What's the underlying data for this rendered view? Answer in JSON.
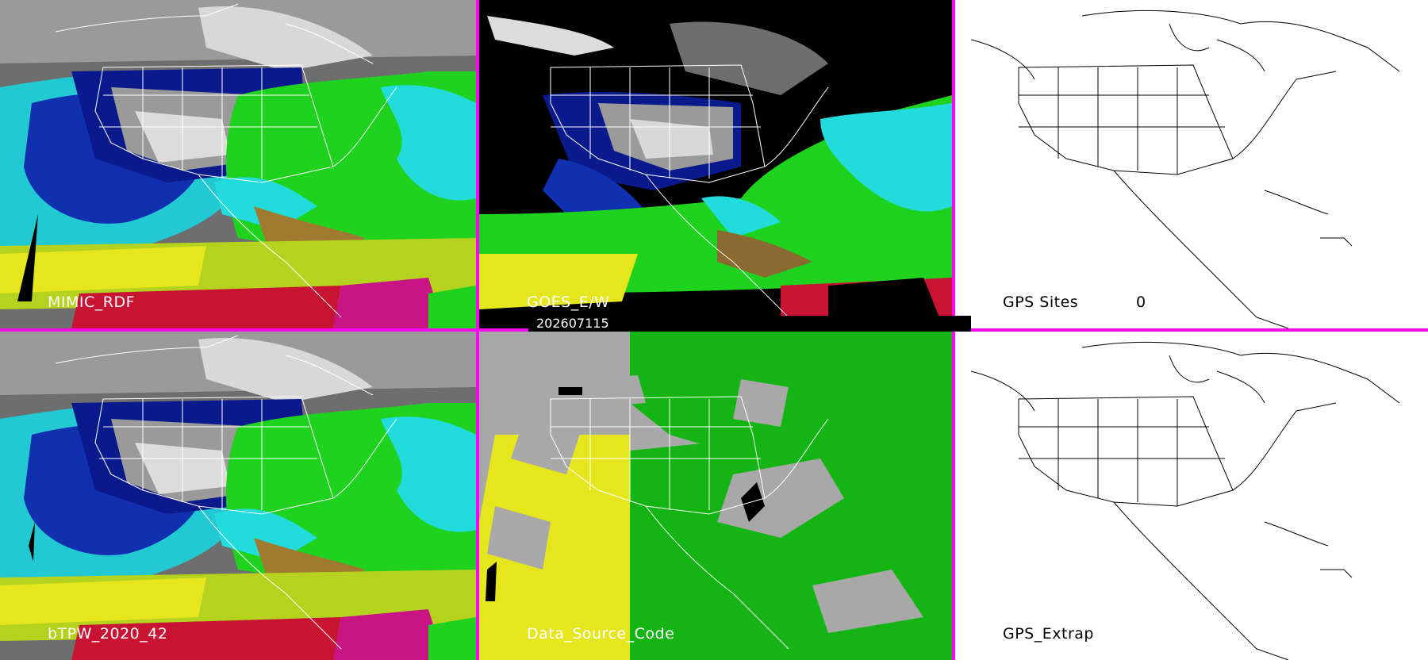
{
  "panels": {
    "top_left": {
      "label": "MIMIC_RDF"
    },
    "top_mid": {
      "label": "GOES_E/W"
    },
    "top_right": {
      "label": "GPS Sites",
      "count": "0"
    },
    "bottom_left": {
      "label": "bTPW_2020_42"
    },
    "bottom_mid": {
      "label": "Data_Source_Code"
    },
    "bottom_right": {
      "label": "GPS_Extrap"
    }
  },
  "timestamp": "202607115",
  "colors": {
    "separator": "#ff00ff",
    "ocean_blue": "#0a1a8c",
    "cyan": "#22dcdc",
    "green": "#1ed21e",
    "yellow": "#e6e61e",
    "red": "#c81432",
    "gray": "#a8a8a8",
    "source_green": "#14b414"
  }
}
